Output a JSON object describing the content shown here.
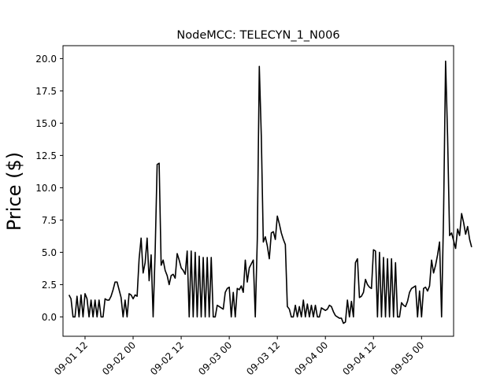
{
  "chart_data": {
    "type": "line",
    "title": "NodeMCC: TELECYN_1_N006",
    "xlabel": "",
    "ylabel": "Price ($)",
    "x_tick_labels": [
      "09-01 12",
      "09-02 00",
      "09-02 12",
      "09-03 00",
      "09-03 12",
      "09-04 00",
      "09-04 12",
      "09-05 00"
    ],
    "y_tick_labels": [
      "0.0",
      "2.5",
      "5.0",
      "7.5",
      "10.0",
      "12.5",
      "15.0",
      "17.5",
      "20.0"
    ],
    "yticks": [
      0,
      2.5,
      5,
      7.5,
      10,
      12.5,
      15,
      17.5,
      20
    ],
    "xlim": [
      "09-01 06:30",
      "09-05 08:00"
    ],
    "ylim": [
      -1.5,
      21
    ],
    "grid": false,
    "line_color": "#000000",
    "series": [
      {
        "name": "",
        "points": [
          [
            "09-01 08:00",
            1.7
          ],
          [
            "09-01 08:30",
            1.4
          ],
          [
            "09-01 09:00",
            0.0
          ],
          [
            "09-01 09:30",
            0.0
          ],
          [
            "09-01 10:00",
            1.6
          ],
          [
            "09-01 10:30",
            0.0
          ],
          [
            "09-01 11:00",
            1.7
          ],
          [
            "09-01 11:30",
            0.0
          ],
          [
            "09-01 12:00",
            1.8
          ],
          [
            "09-01 12:30",
            1.4
          ],
          [
            "09-01 13:00",
            0.0
          ],
          [
            "09-01 13:30",
            1.3
          ],
          [
            "09-01 14:00",
            0.0
          ],
          [
            "09-01 14:30",
            1.3
          ],
          [
            "09-01 15:00",
            0.0
          ],
          [
            "09-01 15:30",
            1.3
          ],
          [
            "09-01 16:00",
            0.0
          ],
          [
            "09-01 16:30",
            0.0
          ],
          [
            "09-01 17:00",
            1.4
          ],
          [
            "09-01 17:30",
            1.3
          ],
          [
            "09-01 18:00",
            1.3
          ],
          [
            "09-01 18:30",
            1.6
          ],
          [
            "09-01 19:00",
            2.1
          ],
          [
            "09-01 19:30",
            2.7
          ],
          [
            "09-01 20:00",
            2.7
          ],
          [
            "09-01 20:30",
            2.1
          ],
          [
            "09-01 21:00",
            1.5
          ],
          [
            "09-01 21:30",
            0.0
          ],
          [
            "09-01 22:00",
            1.3
          ],
          [
            "09-01 22:30",
            0.0
          ],
          [
            "09-01 23:00",
            1.8
          ],
          [
            "09-01 23:30",
            1.7
          ],
          [
            "09-02 00:00",
            1.4
          ],
          [
            "09-02 00:30",
            1.7
          ],
          [
            "09-02 01:00",
            1.6
          ],
          [
            "09-02 01:30",
            4.5
          ],
          [
            "09-02 02:00",
            6.1
          ],
          [
            "09-02 02:30",
            3.4
          ],
          [
            "09-02 03:00",
            4.2
          ],
          [
            "09-02 03:30",
            6.1
          ],
          [
            "09-02 04:00",
            2.8
          ],
          [
            "09-02 04:30",
            4.8
          ],
          [
            "09-02 05:00",
            0.0
          ],
          [
            "09-02 05:30",
            5.0
          ],
          [
            "09-02 06:00",
            11.8
          ],
          [
            "09-02 06:30",
            11.9
          ],
          [
            "09-02 07:00",
            4.0
          ],
          [
            "09-02 07:30",
            4.4
          ],
          [
            "09-02 08:00",
            3.6
          ],
          [
            "09-02 08:30",
            3.2
          ],
          [
            "09-02 09:00",
            2.5
          ],
          [
            "09-02 09:30",
            3.2
          ],
          [
            "09-02 10:00",
            3.3
          ],
          [
            "09-02 10:30",
            3.0
          ],
          [
            "09-02 11:00",
            4.9
          ],
          [
            "09-02 11:30",
            4.4
          ],
          [
            "09-02 12:00",
            3.8
          ],
          [
            "09-02 12:30",
            3.6
          ],
          [
            "09-02 13:00",
            3.3
          ],
          [
            "09-02 13:30",
            5.1
          ],
          [
            "09-02 14:00",
            0.0
          ],
          [
            "09-02 14:30",
            5.1
          ],
          [
            "09-02 15:00",
            0.0
          ],
          [
            "09-02 15:30",
            5.0
          ],
          [
            "09-02 16:00",
            0.0
          ],
          [
            "09-02 16:30",
            4.7
          ],
          [
            "09-02 17:00",
            0.0
          ],
          [
            "09-02 17:30",
            4.6
          ],
          [
            "09-02 18:00",
            0.0
          ],
          [
            "09-02 18:30",
            4.6
          ],
          [
            "09-02 19:00",
            0.0
          ],
          [
            "09-02 19:30",
            4.6
          ],
          [
            "09-02 20:00",
            0.0
          ],
          [
            "09-02 20:30",
            0.0
          ],
          [
            "09-02 21:00",
            0.9
          ],
          [
            "09-02 21:30",
            0.8
          ],
          [
            "09-02 22:00",
            0.7
          ],
          [
            "09-02 22:30",
            0.6
          ],
          [
            "09-02 23:00",
            1.9
          ],
          [
            "09-02 23:30",
            2.2
          ],
          [
            "09-03 00:00",
            2.3
          ],
          [
            "09-03 00:30",
            0.0
          ],
          [
            "09-03 01:00",
            1.9
          ],
          [
            "09-03 01:30",
            0.0
          ],
          [
            "09-03 02:00",
            2.2
          ],
          [
            "09-03 02:30",
            2.1
          ],
          [
            "09-03 03:00",
            2.4
          ],
          [
            "09-03 03:30",
            1.9
          ],
          [
            "09-03 04:00",
            4.4
          ],
          [
            "09-03 04:30",
            2.7
          ],
          [
            "09-03 05:00",
            3.8
          ],
          [
            "09-03 05:30",
            4.1
          ],
          [
            "09-03 06:00",
            4.4
          ],
          [
            "09-03 06:30",
            0.0
          ],
          [
            "09-03 07:00",
            6.0
          ],
          [
            "09-03 07:30",
            19.4
          ],
          [
            "09-03 08:00",
            14.0
          ],
          [
            "09-03 08:30",
            5.8
          ],
          [
            "09-03 09:00",
            6.2
          ],
          [
            "09-03 09:30",
            5.5
          ],
          [
            "09-03 10:00",
            4.5
          ],
          [
            "09-03 10:30",
            6.5
          ],
          [
            "09-03 11:00",
            6.6
          ],
          [
            "09-03 11:30",
            6.0
          ],
          [
            "09-03 12:00",
            7.8
          ],
          [
            "09-03 12:30",
            7.2
          ],
          [
            "09-03 13:00",
            6.5
          ],
          [
            "09-03 13:30",
            6.0
          ],
          [
            "09-03 14:00",
            5.6
          ],
          [
            "09-03 14:30",
            0.8
          ],
          [
            "09-03 15:00",
            0.6
          ],
          [
            "09-03 15:30",
            0.0
          ],
          [
            "09-03 16:00",
            0.0
          ],
          [
            "09-03 16:30",
            0.9
          ],
          [
            "09-03 17:00",
            0.0
          ],
          [
            "09-03 17:30",
            0.8
          ],
          [
            "09-03 18:00",
            0.0
          ],
          [
            "09-03 18:30",
            1.3
          ],
          [
            "09-03 19:00",
            0.0
          ],
          [
            "09-03 19:30",
            1.0
          ],
          [
            "09-03 20:00",
            0.0
          ],
          [
            "09-03 20:30",
            0.9
          ],
          [
            "09-03 21:00",
            0.0
          ],
          [
            "09-03 21:30",
            0.9
          ],
          [
            "09-03 22:00",
            0.0
          ],
          [
            "09-03 22:30",
            0.0
          ],
          [
            "09-03 23:00",
            0.7
          ],
          [
            "09-03 23:30",
            0.6
          ],
          [
            "09-04 00:00",
            0.5
          ],
          [
            "09-04 00:30",
            0.6
          ],
          [
            "09-04 01:00",
            0.9
          ],
          [
            "09-04 01:30",
            0.8
          ],
          [
            "09-04 02:00",
            0.4
          ],
          [
            "09-04 02:30",
            0.1
          ],
          [
            "09-04 03:00",
            0.0
          ],
          [
            "09-04 03:30",
            -0.1
          ],
          [
            "09-04 04:00",
            -0.1
          ],
          [
            "09-04 04:30",
            -0.5
          ],
          [
            "09-04 05:00",
            -0.4
          ],
          [
            "09-04 05:30",
            1.3
          ],
          [
            "09-04 06:00",
            0.0
          ],
          [
            "09-04 06:30",
            1.2
          ],
          [
            "09-04 07:00",
            0.0
          ],
          [
            "09-04 07:30",
            4.2
          ],
          [
            "09-04 08:00",
            4.5
          ],
          [
            "09-04 08:30",
            1.5
          ],
          [
            "09-04 09:00",
            1.6
          ],
          [
            "09-04 09:30",
            1.9
          ],
          [
            "09-04 10:00",
            2.9
          ],
          [
            "09-04 10:30",
            2.5
          ],
          [
            "09-04 11:00",
            2.3
          ],
          [
            "09-04 11:30",
            2.2
          ],
          [
            "09-04 12:00",
            5.2
          ],
          [
            "09-04 12:30",
            5.1
          ],
          [
            "09-04 13:00",
            0.0
          ],
          [
            "09-04 13:30",
            5.0
          ],
          [
            "09-04 14:00",
            0.0
          ],
          [
            "09-04 14:30",
            4.6
          ],
          [
            "09-04 15:00",
            0.0
          ],
          [
            "09-04 15:30",
            4.5
          ],
          [
            "09-04 16:00",
            0.0
          ],
          [
            "09-04 16:30",
            4.5
          ],
          [
            "09-04 17:00",
            0.0
          ],
          [
            "09-04 17:30",
            4.2
          ],
          [
            "09-04 18:00",
            0.0
          ],
          [
            "09-04 18:30",
            0.0
          ],
          [
            "09-04 19:00",
            1.1
          ],
          [
            "09-04 19:30",
            0.9
          ],
          [
            "09-04 20:00",
            0.8
          ],
          [
            "09-04 20:30",
            1.2
          ],
          [
            "09-04 21:00",
            1.9
          ],
          [
            "09-04 21:30",
            2.2
          ],
          [
            "09-04 22:00",
            2.3
          ],
          [
            "09-04 22:30",
            2.4
          ],
          [
            "09-04 23:00",
            0.0
          ],
          [
            "09-04 23:30",
            2.0
          ],
          [
            "09-05 00:00",
            0.0
          ],
          [
            "09-05 00:30",
            2.2
          ],
          [
            "09-05 01:00",
            2.3
          ],
          [
            "09-05 01:30",
            2.0
          ],
          [
            "09-05 02:00",
            2.4
          ],
          [
            "09-05 02:30",
            4.4
          ],
          [
            "09-05 03:00",
            3.4
          ],
          [
            "09-05 03:30",
            4.0
          ],
          [
            "09-05 04:00",
            4.8
          ],
          [
            "09-05 04:30",
            5.8
          ],
          [
            "09-05 05:00",
            0.0
          ],
          [
            "09-05 05:30",
            8.0
          ],
          [
            "09-05 06:00",
            19.8
          ],
          [
            "09-05 06:30",
            14.0
          ],
          [
            "09-05 07:00",
            6.3
          ],
          [
            "09-05 07:30",
            6.5
          ],
          [
            "09-05 08:00",
            5.9
          ],
          [
            "09-05 08:30",
            5.3
          ],
          [
            "09-05 09:00",
            6.8
          ],
          [
            "09-05 09:30",
            6.3
          ],
          [
            "09-05 10:00",
            8.0
          ],
          [
            "09-05 10:30",
            7.3
          ],
          [
            "09-05 11:00",
            6.4
          ],
          [
            "09-05 11:30",
            7.0
          ],
          [
            "09-05 12:00",
            6.0
          ],
          [
            "09-05 12:30",
            5.4
          ]
        ]
      }
    ]
  }
}
